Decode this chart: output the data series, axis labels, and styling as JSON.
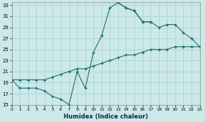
{
  "xlabel": "Humidex (Indice chaleur)",
  "background_color": "#cce8e8",
  "line_color": "#1a6e6e",
  "xlim": [
    0,
    23
  ],
  "ylim": [
    15,
    33.5
  ],
  "xtick_labels": [
    "0",
    "1",
    "2",
    "3",
    "4",
    "5",
    "6",
    "7",
    "8",
    "9",
    "10",
    "11",
    "12",
    "13",
    "14",
    "15",
    "16",
    "17",
    "18",
    "19",
    "20",
    "21",
    "22",
    "23"
  ],
  "xticks": [
    0,
    1,
    2,
    3,
    4,
    5,
    6,
    7,
    8,
    9,
    10,
    11,
    12,
    13,
    14,
    15,
    16,
    17,
    18,
    19,
    20,
    21,
    22,
    23
  ],
  "yticks": [
    15,
    17,
    19,
    21,
    23,
    25,
    27,
    29,
    31,
    33
  ],
  "grid_color": "#aad4d4",
  "lines": [
    {
      "x": [
        0,
        1,
        2,
        3,
        4,
        5,
        6,
        7,
        8,
        9,
        10,
        11,
        12,
        13,
        14,
        15,
        16,
        17
      ],
      "y": [
        19.5,
        18,
        18,
        18,
        17.5,
        16.5,
        16,
        15,
        21,
        18,
        24.5,
        27.5,
        32.5,
        33.5,
        32.5,
        32,
        30,
        30
      ]
    },
    {
      "comment": "upper right line: from ~(13,33.5) going to (19,29.5),(20,29.5),(21,28),(22,27),(23,25.5)",
      "x": [
        13,
        14,
        15,
        16,
        17,
        18,
        19,
        20,
        21,
        22,
        23
      ],
      "y": [
        33.5,
        32.5,
        32,
        30,
        30,
        29,
        29.5,
        29.5,
        28,
        27,
        25.5
      ]
    },
    {
      "x": [
        0,
        1,
        2,
        3,
        4,
        5,
        6,
        7,
        8,
        9,
        10,
        11,
        12,
        13,
        14,
        15,
        16,
        17,
        18,
        19,
        20,
        21,
        22,
        23
      ],
      "y": [
        19.5,
        19.5,
        19.5,
        19.5,
        19.5,
        20,
        20.5,
        21,
        21.5,
        21.5,
        22,
        22.5,
        23,
        23.5,
        24,
        24,
        24.5,
        25,
        25,
        25,
        25.5,
        25.5,
        25.5,
        25.5
      ]
    }
  ]
}
